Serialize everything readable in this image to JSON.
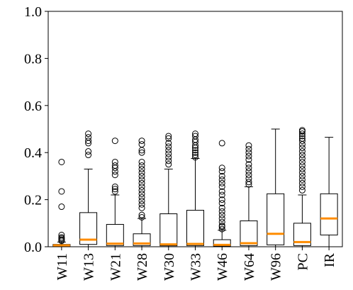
{
  "chart_data": {
    "type": "box",
    "title": "",
    "xlabel": "",
    "ylabel": "",
    "ylim": [
      0,
      1.0
    ],
    "yticks": [
      "0.0",
      "0.2",
      "0.4",
      "0.6",
      "0.8",
      "1.0"
    ],
    "grid": false,
    "legend": "none",
    "colors": {
      "median": "#ff8c00",
      "box": "#000000",
      "flier": "#000000"
    },
    "categories": [
      "W11",
      "W13",
      "W21",
      "W28",
      "W30",
      "W33",
      "W46",
      "W64",
      "W96",
      "PC",
      "IR"
    ],
    "boxes": [
      {
        "category": "W11",
        "whislo": 0.0,
        "q1": 0.002,
        "med": 0.006,
        "q3": 0.01,
        "whishi": 0.02,
        "fliers": [
          0.36,
          0.235,
          0.17,
          0.05,
          0.04,
          0.035,
          0.03,
          0.025
        ]
      },
      {
        "category": "W13",
        "whislo": 0.0,
        "q1": 0.01,
        "med": 0.03,
        "q3": 0.145,
        "whishi": 0.33,
        "fliers": [
          0.48,
          0.465,
          0.45,
          0.44,
          0.405,
          0.39
        ]
      },
      {
        "category": "W21",
        "whislo": 0.0,
        "q1": 0.005,
        "med": 0.013,
        "q3": 0.095,
        "whishi": 0.22,
        "fliers": [
          0.45,
          0.36,
          0.345,
          0.335,
          0.32,
          0.305,
          0.255,
          0.245,
          0.235
        ]
      },
      {
        "category": "W28",
        "whislo": 0.0,
        "q1": 0.005,
        "med": 0.014,
        "q3": 0.055,
        "whishi": 0.12,
        "fliers": [
          0.45,
          0.435,
          0.41,
          0.4,
          0.36,
          0.345,
          0.33,
          0.315,
          0.3,
          0.285,
          0.27,
          0.255,
          0.24,
          0.225,
          0.21,
          0.195,
          0.18,
          0.165,
          0.135,
          0.125
        ]
      },
      {
        "category": "W30",
        "whislo": 0.0,
        "q1": 0.004,
        "med": 0.01,
        "q3": 0.14,
        "whishi": 0.33,
        "fliers": [
          0.47,
          0.46,
          0.44,
          0.425,
          0.41,
          0.395,
          0.38,
          0.365,
          0.35
        ]
      },
      {
        "category": "W33",
        "whislo": 0.0,
        "q1": 0.005,
        "med": 0.012,
        "q3": 0.155,
        "whishi": 0.375,
        "fliers": [
          0.48,
          0.47,
          0.455,
          0.445,
          0.43,
          0.42,
          0.41,
          0.4,
          0.39,
          0.38
        ]
      },
      {
        "category": "W46",
        "whislo": 0.0,
        "q1": 0.003,
        "med": 0.008,
        "q3": 0.03,
        "whishi": 0.07,
        "fliers": [
          0.44,
          0.335,
          0.32,
          0.3,
          0.285,
          0.27,
          0.255,
          0.235,
          0.22,
          0.2,
          0.185,
          0.165,
          0.15,
          0.135,
          0.12,
          0.105,
          0.09,
          0.085,
          0.075
        ]
      },
      {
        "category": "W64",
        "whislo": 0.0,
        "q1": 0.005,
        "med": 0.015,
        "q3": 0.11,
        "whishi": 0.255,
        "fliers": [
          0.43,
          0.415,
          0.4,
          0.385,
          0.37,
          0.35,
          0.335,
          0.32,
          0.305,
          0.29,
          0.275,
          0.265
        ]
      },
      {
        "category": "W96",
        "whislo": 0.0,
        "q1": 0.008,
        "med": 0.055,
        "q3": 0.225,
        "whishi": 0.5,
        "fliers": []
      },
      {
        "category": "PC",
        "whislo": 0.0,
        "q1": 0.005,
        "med": 0.02,
        "q3": 0.1,
        "whishi": 0.22,
        "fliers": [
          0.495,
          0.49,
          0.48,
          0.47,
          0.46,
          0.45,
          0.435,
          0.42,
          0.405,
          0.39,
          0.375,
          0.36,
          0.345,
          0.33,
          0.315,
          0.3,
          0.285,
          0.27,
          0.255,
          0.24
        ]
      },
      {
        "category": "IR",
        "whislo": 0.0,
        "q1": 0.05,
        "med": 0.12,
        "q3": 0.225,
        "whishi": 0.465,
        "fliers": []
      }
    ]
  }
}
